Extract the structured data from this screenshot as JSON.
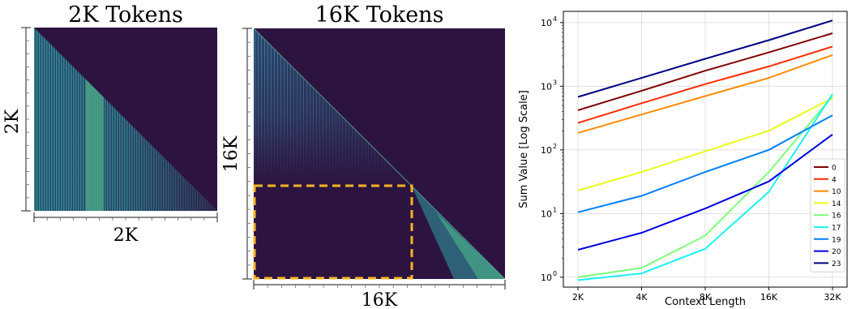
{
  "heatmaps": [
    {
      "title": "2K Tokens",
      "x_label": "2K",
      "y_label": "2K"
    },
    {
      "title": "16K Tokens",
      "x_label": "16K",
      "y_label": "16K"
    }
  ],
  "colors": {
    "heatmap_background": "#2d1440",
    "heatmap_teal": "#2f7a8a",
    "heatmap_bright": "#6fd08c",
    "highlight_box": "#f5b324"
  },
  "chart_data": [
    {
      "type": "heatmap",
      "title": "2K Tokens",
      "xlabel": "2K",
      "ylabel": "2K",
      "pattern": "lower-triangular attention map"
    },
    {
      "type": "heatmap",
      "title": "16K Tokens",
      "xlabel": "16K",
      "ylabel": "16K",
      "pattern": "lower-triangular attention map with highlighted lower-left region"
    },
    {
      "type": "line",
      "title": "",
      "xlabel": "Context Length",
      "ylabel": "Sum Value [Log Scale]",
      "x": [
        "2K",
        "4K",
        "8K",
        "16K",
        "32K"
      ],
      "yscale": "log",
      "ylim": [
        0.7,
        15000
      ],
      "yticks": [
        1,
        10,
        100,
        1000,
        10000
      ],
      "ytick_labels": [
        "10",
        "10",
        "10",
        "10",
        "10"
      ],
      "ytick_exponents": [
        "0",
        "1",
        "2",
        "3",
        "4"
      ],
      "grid": true,
      "legend": "lower-right",
      "series": [
        {
          "name": "0",
          "color": "#7f0000",
          "values": [
            420,
            850,
            1750,
            3400,
            6800
          ]
        },
        {
          "name": "4",
          "color": "#ff2a00",
          "values": [
            265,
            540,
            1080,
            2050,
            4200
          ]
        },
        {
          "name": "10",
          "color": "#ff8c00",
          "values": [
            185,
            360,
            700,
            1350,
            3100
          ]
        },
        {
          "name": "14",
          "color": "#eaff16",
          "values": [
            23,
            45,
            95,
            200,
            650
          ]
        },
        {
          "name": "16",
          "color": "#7cff79",
          "values": [
            1.0,
            1.4,
            4.5,
            45,
            700
          ]
        },
        {
          "name": "17",
          "color": "#1cf2f2",
          "values": [
            0.9,
            1.15,
            2.8,
            22,
            750
          ]
        },
        {
          "name": "19",
          "color": "#0080ff",
          "values": [
            10.5,
            19,
            45,
            100,
            350
          ]
        },
        {
          "name": "20",
          "color": "#0000e0",
          "values": [
            2.7,
            5,
            12,
            32,
            175
          ]
        },
        {
          "name": "23",
          "color": "#000080",
          "values": [
            680,
            1350,
            2700,
            5300,
            10800
          ]
        }
      ]
    }
  ]
}
